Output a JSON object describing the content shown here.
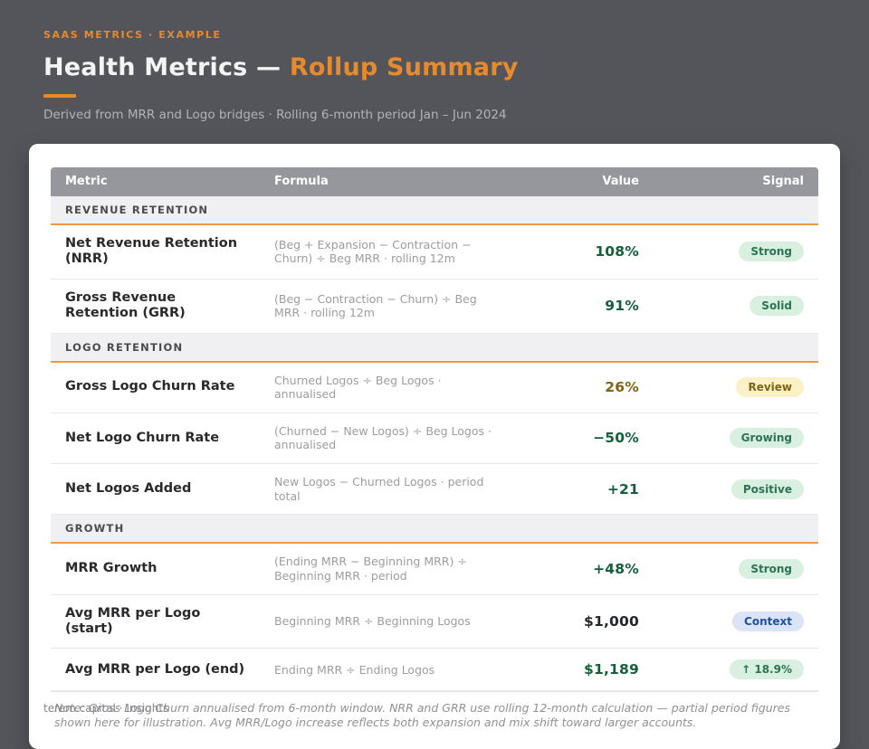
{
  "page": {
    "kicker": "SAAS METRICS · EXAMPLE",
    "title_main": "Health Metrics — ",
    "title_accent": "Rollup Summary",
    "subtitle": "Derived from MRR and Logo bridges · Rolling 6-month period Jan – Jun 2024",
    "footer": "terem.capital · Insights"
  },
  "colors": {
    "accent_orange": "#e68a2d",
    "page_background": "#54555a",
    "positive_green": "#15603a",
    "warning_amber": "#7d6513",
    "context_blue": "#2050a0",
    "badge_green_bg": "#d9efdf",
    "badge_amber_bg": "#fcf0c7",
    "badge_blue_bg": "#dbe3f6"
  },
  "table": {
    "columns": {
      "metric": "Metric",
      "formula": "Formula",
      "value": "Value",
      "signal": "Signal"
    },
    "sections": [
      {
        "label": "REVENUE RETENTION",
        "rows": [
          {
            "metric": "Net Revenue Retention (NRR)",
            "formula": "(Beg + Expansion − Contraction − Churn) ÷ Beg MRR · rolling 12m",
            "value": "108%",
            "signal": "Strong"
          },
          {
            "metric": "Gross Revenue Retention (GRR)",
            "formula": "(Beg − Contraction − Churn) ÷ Beg MRR · rolling 12m",
            "value": "91%",
            "signal": "Solid"
          }
        ]
      },
      {
        "label": "LOGO RETENTION",
        "rows": [
          {
            "metric": "Gross Logo Churn Rate",
            "formula": "Churned Logos ÷ Beg Logos · annualised",
            "value": "26%",
            "signal": "Review"
          },
          {
            "metric": "Net Logo Churn Rate",
            "formula": "(Churned − New Logos) ÷ Beg Logos · annualised",
            "value": "−50%",
            "signal": "Growing"
          },
          {
            "metric": "Net Logos Added",
            "formula": "New Logos − Churned Logos · period total",
            "value": "+21",
            "signal": "Positive"
          }
        ]
      },
      {
        "label": "GROWTH",
        "rows": [
          {
            "metric": "MRR Growth",
            "formula": "(Ending MRR − Beginning MRR) ÷ Beginning MRR · period",
            "value": "+48%",
            "signal": "Strong"
          },
          {
            "metric": "Avg MRR per Logo (start)",
            "formula": "Beginning MRR ÷ Beginning Logos",
            "value": "$1,000",
            "signal": "Context"
          },
          {
            "metric": "Avg MRR per Logo (end)",
            "formula": "Ending MRR ÷ Ending Logos",
            "value": "$1,189",
            "signal": "↑ 18.9%"
          }
        ]
      }
    ],
    "note": "Note: Gross Logo Churn annualised from 6-month window. NRR and GRR use rolling 12-month calculation — partial period figures shown here for illustration. Avg MRR/Logo increase reflects both expansion and mix shift toward larger accounts."
  }
}
